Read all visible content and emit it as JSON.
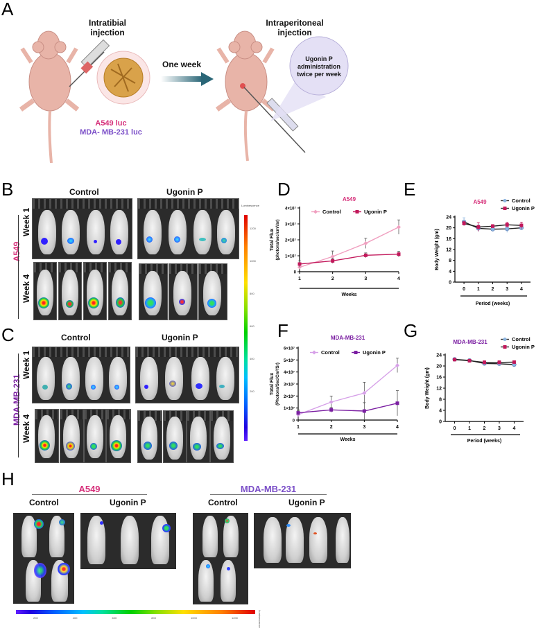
{
  "panels": {
    "A": {
      "letter": "A",
      "left_label": "Intratibial\ninjection",
      "left_label_l1": "Intratibial",
      "left_label_l2": "injection",
      "cell_line_1": "A549 luc",
      "cell_line_2": "MDA- MB-231 luc",
      "arrow_label": "One week",
      "right_label_l1": "Intraperitoneal",
      "right_label_l2": "injection",
      "bubble_l1": "Ugonin P",
      "bubble_l2": "administration",
      "bubble_l3": "twice per week",
      "colors": {
        "a549": "#d6307a",
        "mda": "#7b4fc8",
        "arrow": "#2a6677",
        "mouse": "#e8b4a8"
      }
    },
    "B": {
      "letter": "B",
      "cell_line": "A549",
      "group_control": "Control",
      "group_treat": "Ugonin P",
      "row1": "Week 1",
      "row2": "Week 4"
    },
    "C": {
      "letter": "C",
      "cell_line": "MDA-MB-231",
      "group_control": "Control",
      "group_treat": "Ugonin P",
      "row1": "Week 1",
      "row2": "Week 4"
    },
    "scale_vertical": {
      "title": "Luminescence",
      "ticks": [
        "1200",
        "1000",
        "800",
        "600",
        "400",
        "200"
      ]
    },
    "D": {
      "letter": "D"
    },
    "E": {
      "letter": "E"
    },
    "F": {
      "letter": "F"
    },
    "G": {
      "letter": "G"
    },
    "H": {
      "letter": "H",
      "a549": "A549",
      "mda": "MDA-MB-231",
      "control": "Control",
      "treat": "Ugonin P",
      "scale_ticks": [
        "200",
        "400",
        "600",
        "800",
        "1000",
        "1200"
      ],
      "scale_title": "Luminescence"
    }
  },
  "chart_data": [
    {
      "id": "D",
      "type": "line",
      "title": "A549",
      "xlabel": "Weeks",
      "ylabel": "Total Flux (photons/sec/cm²/sr)",
      "x": [
        1,
        2,
        3,
        4
      ],
      "ylim": [
        0,
        40000000
      ],
      "yticks": [
        "0",
        "1×10⁷",
        "2×10⁷",
        "3×10⁷",
        "4×10⁷"
      ],
      "legend_position": "top",
      "series": [
        {
          "name": "Control",
          "color": "#f0a0c0",
          "marker": "diamond",
          "values": [
            2800000,
            9500000,
            17800000,
            28000000
          ],
          "errors": [
            2000000,
            3500000,
            3200000,
            4500000
          ]
        },
        {
          "name": "Ugonin P",
          "color": "#c2185b",
          "marker": "square",
          "values": [
            4800000,
            6800000,
            10300000,
            11000000
          ],
          "errors": [
            2000000,
            1500000,
            1500000,
            1800000
          ]
        }
      ]
    },
    {
      "id": "E",
      "type": "line",
      "title": "A549",
      "xlabel": "Period (weeks)",
      "ylabel": "Body Weight (gm)",
      "x": [
        0,
        1,
        2,
        3,
        4
      ],
      "ylim": [
        0,
        24
      ],
      "yticks": [
        "0",
        "4",
        "8",
        "12",
        "16",
        "20",
        "24"
      ],
      "legend_position": "top-right",
      "series": [
        {
          "name": "Control",
          "color": "#8ab4e0",
          "marker": "circle",
          "values": [
            22.2,
            19.8,
            19.5,
            19.6,
            20.0
          ],
          "errors": [
            1.5,
            1.2,
            0.8,
            1.3,
            0.8
          ]
        },
        {
          "name": "Ugonin P",
          "color": "#c2185b",
          "marker": "square",
          "values": [
            21.6,
            20.3,
            20.6,
            21.1,
            20.9
          ],
          "errors": [
            0.8,
            1.6,
            0.6,
            1.0,
            1.2
          ]
        }
      ]
    },
    {
      "id": "F",
      "type": "line",
      "title": "MDA-MB-231",
      "xlabel": "Weeks",
      "ylabel": "Total Flux (Photons/Sec/Cm²/Sr)",
      "x": [
        1,
        2,
        3,
        4
      ],
      "ylim": [
        0,
        60000000
      ],
      "yticks": [
        "0",
        "1×10⁷",
        "2×10⁷",
        "3×10⁷",
        "4×10⁷",
        "5×10⁷",
        "6×10⁷"
      ],
      "legend_position": "top",
      "series": [
        {
          "name": "Control",
          "color": "#d6a0e8",
          "marker": "diamond",
          "values": [
            4500000,
            15000000,
            22500000,
            45500000
          ],
          "errors": [
            4000000,
            5000000,
            9000000,
            6000000
          ]
        },
        {
          "name": "Ugonin P",
          "color": "#7b1fa2",
          "marker": "square",
          "values": [
            6000000,
            8500000,
            7500000,
            14000000
          ],
          "errors": [
            2000000,
            2000000,
            7000000,
            10500000
          ]
        }
      ]
    },
    {
      "id": "G",
      "type": "line",
      "title": "MDA-MB-231",
      "xlabel": "Period (weeks)",
      "ylabel": "Body Weight (gm)",
      "x": [
        0,
        1,
        2,
        3,
        4
      ],
      "ylim": [
        0,
        24
      ],
      "yticks": [
        "0",
        "4",
        "8",
        "12",
        "16",
        "20",
        "24"
      ],
      "legend_position": "top-right",
      "series": [
        {
          "name": "Control",
          "color": "#8ab4e0",
          "marker": "circle",
          "values": [
            22.4,
            22.0,
            20.9,
            20.8,
            20.5
          ],
          "errors": [
            0.3,
            0.4,
            0.5,
            0.6,
            0.6
          ]
        },
        {
          "name": "Ugonin P",
          "color": "#c2185b",
          "marker": "square",
          "values": [
            22.3,
            21.9,
            21.3,
            21.3,
            21.4
          ],
          "errors": [
            0.3,
            0.4,
            0.6,
            0.6,
            0.5
          ]
        }
      ]
    }
  ]
}
